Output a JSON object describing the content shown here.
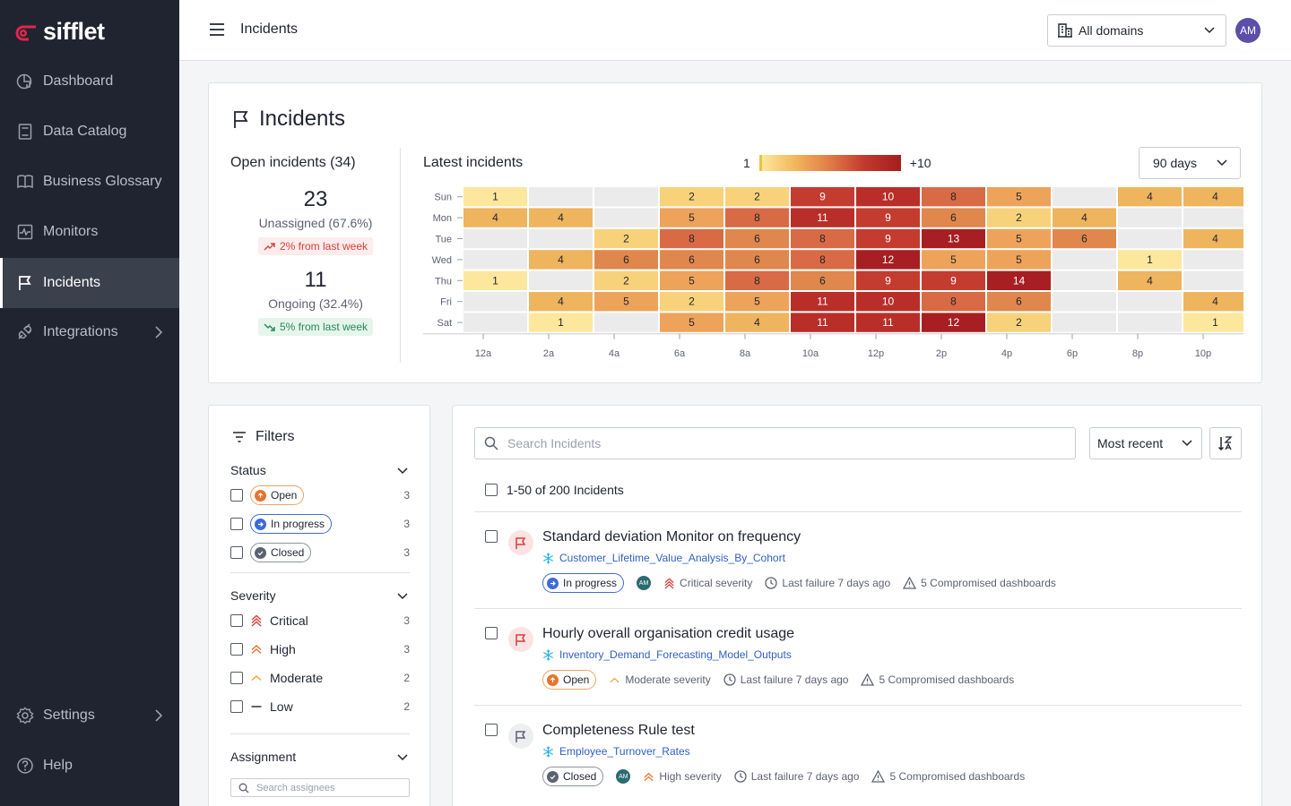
{
  "brand": {
    "name": "sifflet",
    "accent": "#e0264a"
  },
  "sidebar": {
    "items": [
      {
        "label": "Dashboard",
        "icon": "dashboard-icon"
      },
      {
        "label": "Data Catalog",
        "icon": "catalog-icon"
      },
      {
        "label": "Business Glossary",
        "icon": "book-icon"
      },
      {
        "label": "Monitors",
        "icon": "monitor-icon"
      },
      {
        "label": "Incidents",
        "icon": "flag-icon",
        "active": true
      },
      {
        "label": "Integrations",
        "icon": "plug-icon"
      }
    ],
    "bottom": [
      {
        "label": "Settings",
        "icon": "gear-icon"
      },
      {
        "label": "Help",
        "icon": "help-icon"
      }
    ]
  },
  "header": {
    "title": "Incidents",
    "domain": "All domains",
    "avatar": "AM"
  },
  "incidents_card": {
    "title": "Incidents",
    "open_title": "Open incidents (34)",
    "unassigned": {
      "value": "23",
      "label": "Unassigned (67.6%)",
      "trend": "2% from last week"
    },
    "ongoing": {
      "value": "11",
      "label": "Ongoing (32.4%)",
      "trend": "5% from last week"
    },
    "latest_title": "Latest incidents",
    "legend_min": "1",
    "legend_max": "+10",
    "period": "90 days"
  },
  "chart_data": {
    "type": "heatmap",
    "title": "Latest incidents",
    "rows": [
      "Sun",
      "Mon",
      "Tue",
      "Wed",
      "Thu",
      "Fri",
      "Sat"
    ],
    "x_tick_labels": [
      "12a",
      "2a",
      "4a",
      "6a",
      "8a",
      "10a",
      "12p",
      "2p",
      "4p",
      "6p",
      "8p",
      "10p"
    ],
    "values": [
      [
        1,
        null,
        null,
        2,
        2,
        9,
        10,
        8,
        5,
        null,
        4,
        4
      ],
      [
        4,
        4,
        null,
        5,
        8,
        11,
        9,
        6,
        2,
        4,
        null,
        null
      ],
      [
        null,
        null,
        2,
        8,
        6,
        8,
        9,
        13,
        5,
        6,
        null,
        4
      ],
      [
        null,
        4,
        6,
        6,
        6,
        8,
        12,
        5,
        5,
        null,
        1,
        null
      ],
      [
        1,
        null,
        2,
        5,
        8,
        6,
        9,
        9,
        14,
        null,
        4,
        null
      ],
      [
        null,
        4,
        5,
        2,
        5,
        11,
        10,
        8,
        6,
        null,
        null,
        4
      ],
      [
        null,
        1,
        null,
        5,
        4,
        11,
        11,
        12,
        2,
        null,
        null,
        1
      ]
    ],
    "scale_min": 1,
    "scale_max": "+10"
  },
  "filters": {
    "title": "Filters",
    "status": {
      "label": "Status",
      "items": [
        {
          "label": "Open",
          "count": "3"
        },
        {
          "label": "In progress",
          "count": "3"
        },
        {
          "label": "Closed",
          "count": "3"
        }
      ]
    },
    "severity": {
      "label": "Severity",
      "items": [
        {
          "label": "Critical",
          "count": "3"
        },
        {
          "label": "High",
          "count": "3"
        },
        {
          "label": "Moderate",
          "count": "2"
        },
        {
          "label": "Low",
          "count": "2"
        }
      ]
    },
    "assignment": {
      "label": "Assignment",
      "placeholder": "Search assignees"
    }
  },
  "list": {
    "search_placeholder": "Search Incidents",
    "sort": "Most recent",
    "count": "1-50 of 200 Incidents",
    "incidents": [
      {
        "title": "Standard deviation Monitor on frequency",
        "dataset": "Customer_Lifetime_Value_Analysis_By_Cohort",
        "status": "In progress",
        "assignee": "AM",
        "severity": "Critical severity",
        "last_failure": "Last failure 7 days ago",
        "dashboards": "5 Compromised dashboards"
      },
      {
        "title": "Hourly overall organisation credit usage",
        "dataset": "Inventory_Demand_Forecasting_Model_Outputs",
        "status": "Open",
        "severity": "Moderate severity",
        "last_failure": "Last failure 7 days ago",
        "dashboards": "5 Compromised dashboards"
      },
      {
        "title": "Completeness Rule test",
        "dataset": "Employee_Turnover_Rates",
        "status": "Closed",
        "assignee": "AM",
        "severity": "High severity",
        "last_failure": "Last failure 7 days ago",
        "dashboards": "5 Compromised dashboards"
      }
    ]
  }
}
